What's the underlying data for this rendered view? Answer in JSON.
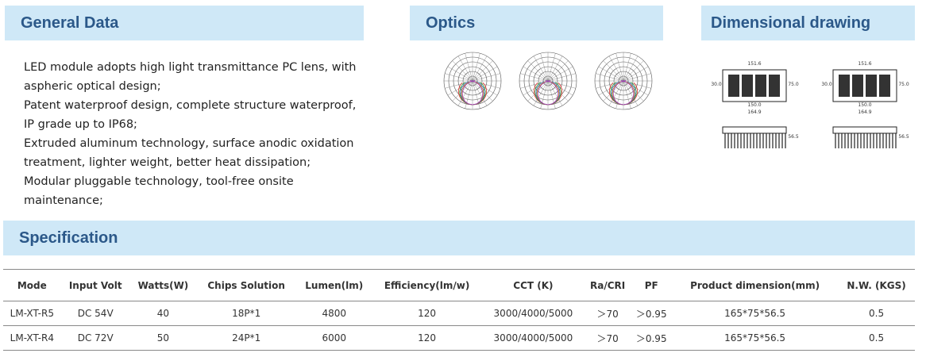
{
  "sections": {
    "general": "General Data",
    "optics": "Optics",
    "drawing": "Dimensional drawing",
    "spec": "Specification"
  },
  "general_items": [
    "LED module adopts high light transmittance PC lens, with aspheric optical design;",
    "Patent waterproof design, complete structure waterproof, IP grade up to IP68;",
    "Extruded aluminum technology, surface anodic oxidation treatment, lighter weight, better heat dissipation;",
    "Modular pluggable technology, tool-free onsite maintenance;"
  ],
  "drawings": [
    {
      "labels": [
        "151.6",
        "30.0",
        "75.0",
        "150.0",
        "164.9",
        "56.5"
      ]
    },
    {
      "labels": [
        "151.6",
        "30.0",
        "75.0",
        "150.0",
        "164.9",
        "56.5"
      ]
    }
  ],
  "table": {
    "header": [
      "Mode",
      "Input Volt",
      "Watts(W)",
      "Chips Solution",
      "Lumen(lm)",
      "Efficiency(lm/w)",
      "CCT (K)",
      "Ra/CRI",
      "PF",
      "Product dimension(mm)",
      "N.W. (KGS)"
    ],
    "rows": [
      [
        "LM-XT-R5",
        "DC 54V",
        40,
        "18P*1",
        4800,
        120,
        "3000/4000/5000",
        "＞70",
        "＞0.95",
        "165*75*56.5",
        0.5
      ],
      [
        "LM-XT-R4",
        "DC 72V",
        50,
        "24P*1",
        6000,
        120,
        "3000/4000/5000",
        "＞70",
        "＞0.95",
        "165*75*56.5",
        0.5
      ]
    ]
  }
}
